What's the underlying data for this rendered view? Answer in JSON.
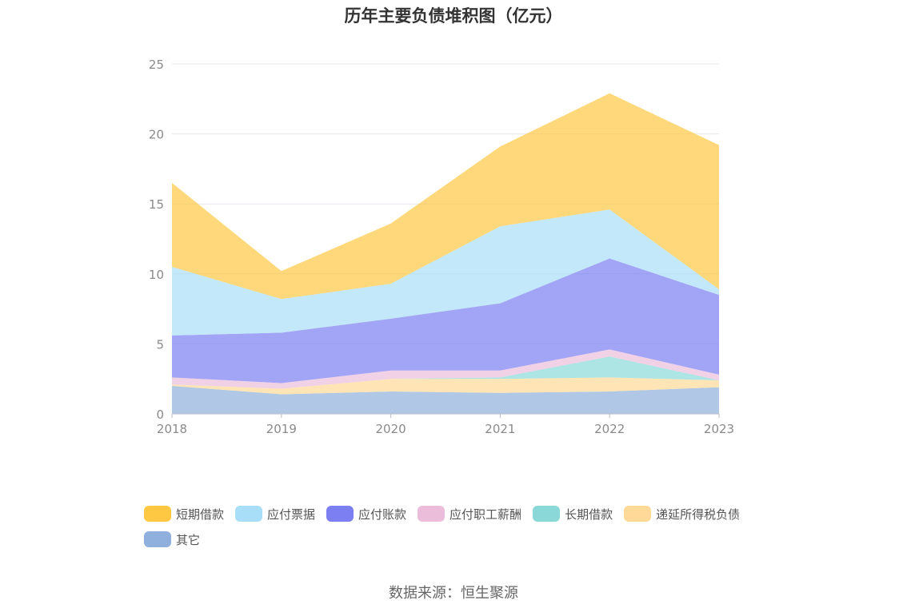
{
  "chart_data": {
    "type": "area",
    "stacked": true,
    "title": "历年主要负债堆积图（亿元）",
    "categories": [
      "2018",
      "2019",
      "2020",
      "2021",
      "2022",
      "2023"
    ],
    "ylim": [
      0,
      25
    ],
    "yticks": [
      0,
      5,
      10,
      15,
      20,
      25
    ],
    "grid": true,
    "legend_position": "bottom",
    "series": [
      {
        "name": "其它",
        "color": "#8fb0dc",
        "values": [
          2.0,
          1.4,
          1.6,
          1.5,
          1.6,
          1.9
        ]
      },
      {
        "name": "递延所得税负债",
        "color": "#ffd997",
        "values": [
          0.1,
          0.4,
          0.9,
          1.0,
          1.0,
          0.5
        ]
      },
      {
        "name": "长期借款",
        "color": "#8ad8d8",
        "values": [
          0.0,
          0.0,
          0.0,
          0.1,
          1.5,
          0.0
        ]
      },
      {
        "name": "应付职工薪酬",
        "color": "#ebbddb",
        "values": [
          0.5,
          0.4,
          0.6,
          0.5,
          0.5,
          0.4
        ]
      },
      {
        "name": "应付账款",
        "color": "#7b7ff2",
        "values": [
          3.0,
          3.6,
          3.7,
          4.8,
          6.5,
          5.7
        ]
      },
      {
        "name": "应付票据",
        "color": "#a9def8",
        "values": [
          4.9,
          2.4,
          2.5,
          5.5,
          3.5,
          0.4
        ]
      },
      {
        "name": "短期借款",
        "color": "#fec842",
        "values": [
          6.0,
          2.0,
          4.3,
          5.7,
          8.3,
          10.3
        ]
      }
    ]
  },
  "source_text": "数据来源：恒生聚源"
}
